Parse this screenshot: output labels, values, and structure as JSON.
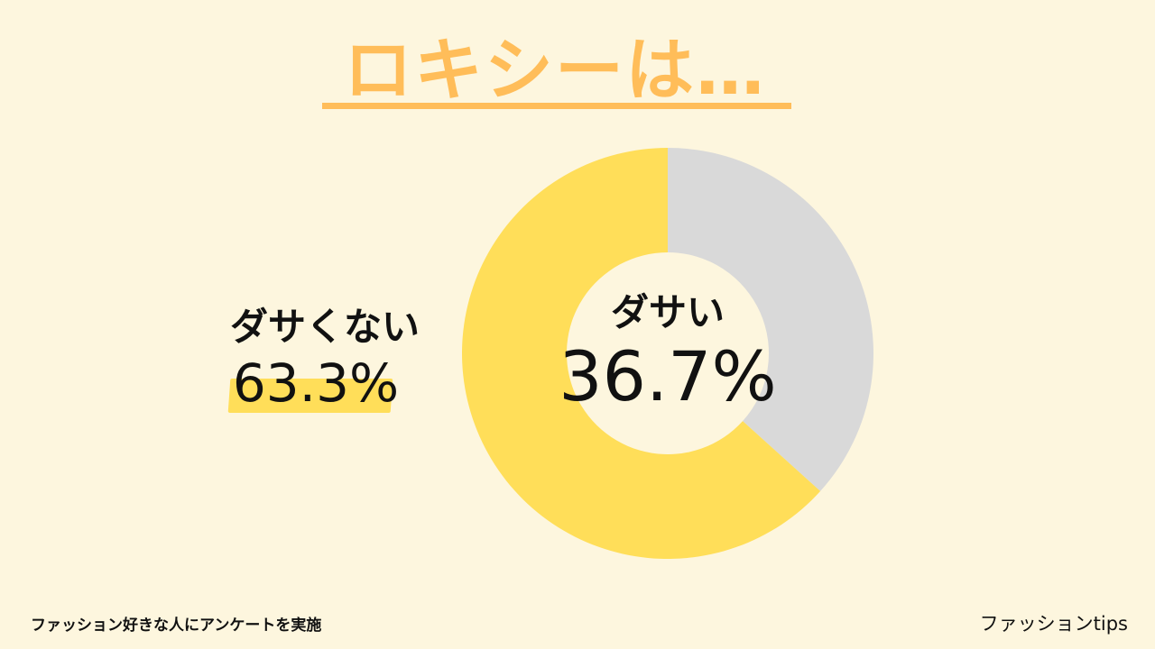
{
  "title": "ロキシーは…",
  "chart_data": {
    "type": "pie",
    "labels": [
      "ダサい",
      "ダサくない"
    ],
    "values": [
      36.7,
      63.3
    ],
    "display_values": [
      "36.7%",
      "63.3%"
    ],
    "colors": [
      "#d9d9d9",
      "#ffde59"
    ],
    "donut": true
  },
  "labels": {
    "inner_name": "ダサい",
    "inner_value": "36.7%",
    "outer_name": "ダサくない",
    "outer_value": "63.3%"
  },
  "footer": {
    "survey_note": "ファッション好きな人にアンケートを実施",
    "brand": "ファッションtips"
  },
  "colors": {
    "background": "#fdf6de",
    "title": "#ffbd59",
    "highlight": "#ffde59",
    "slice_gray": "#d9d9d9",
    "slice_yellow": "#ffde59",
    "text": "#111111"
  }
}
